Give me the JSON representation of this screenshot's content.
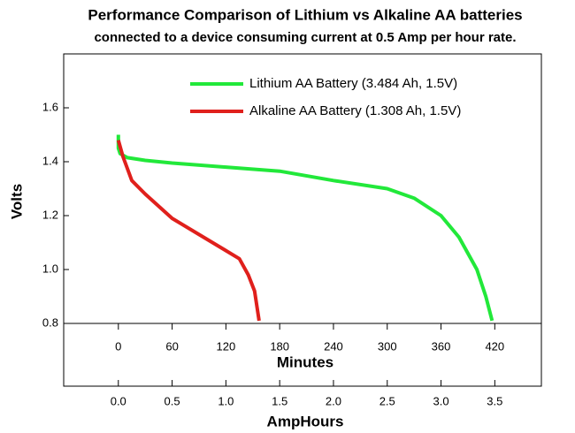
{
  "chart_data": {
    "type": "line",
    "title": "Performance Comparison of Lithium vs Alkaline AA batteries",
    "subtitle": "connected to a device consuming current at 0.5 Amp per hour rate.",
    "y_label": "Volts",
    "x_label": "Minutes",
    "x2_label": "AmpHours",
    "ylim": [
      0.8,
      1.8
    ],
    "yticks": [
      0.8,
      {
        "value": 1.0,
        "label": "1.0"
      },
      1.2,
      1.4,
      1.6
    ],
    "xlim": [
      -61,
      472
    ],
    "xticks": [
      0,
      60,
      120,
      180,
      240,
      300,
      360,
      420
    ],
    "x2lim": [
      -0.508,
      3.933
    ],
    "x2ticks": [
      {
        "value": 0,
        "label": "0.0"
      },
      0.5,
      {
        "value": 1,
        "label": "1.0"
      },
      1.5,
      {
        "value": 2,
        "label": "2.0"
      },
      2.5,
      {
        "value": 3,
        "label": "3.0"
      },
      3.5
    ],
    "series": [
      {
        "name": "Lithium AA Battery (3.484 Ah, 1.5V)",
        "color": "#22e83a",
        "x": [
          0,
          0,
          2,
          10,
          30,
          60,
          120,
          180,
          240,
          300,
          330,
          360,
          380,
          400,
          410,
          417
        ],
        "values": [
          1.5,
          1.45,
          1.43,
          1.415,
          1.405,
          1.395,
          1.38,
          1.365,
          1.33,
          1.3,
          1.265,
          1.2,
          1.12,
          1.0,
          0.9,
          0.81
        ]
      },
      {
        "name": "Alkaline AA Battery (1.308 Ah, 1.5V)",
        "color": "#e0201c",
        "x": [
          0,
          5,
          15,
          30,
          60,
          90,
          120,
          135,
          145,
          152,
          157
        ],
        "values": [
          1.48,
          1.42,
          1.33,
          1.28,
          1.19,
          1.13,
          1.07,
          1.04,
          0.98,
          0.92,
          0.81
        ]
      }
    ]
  }
}
